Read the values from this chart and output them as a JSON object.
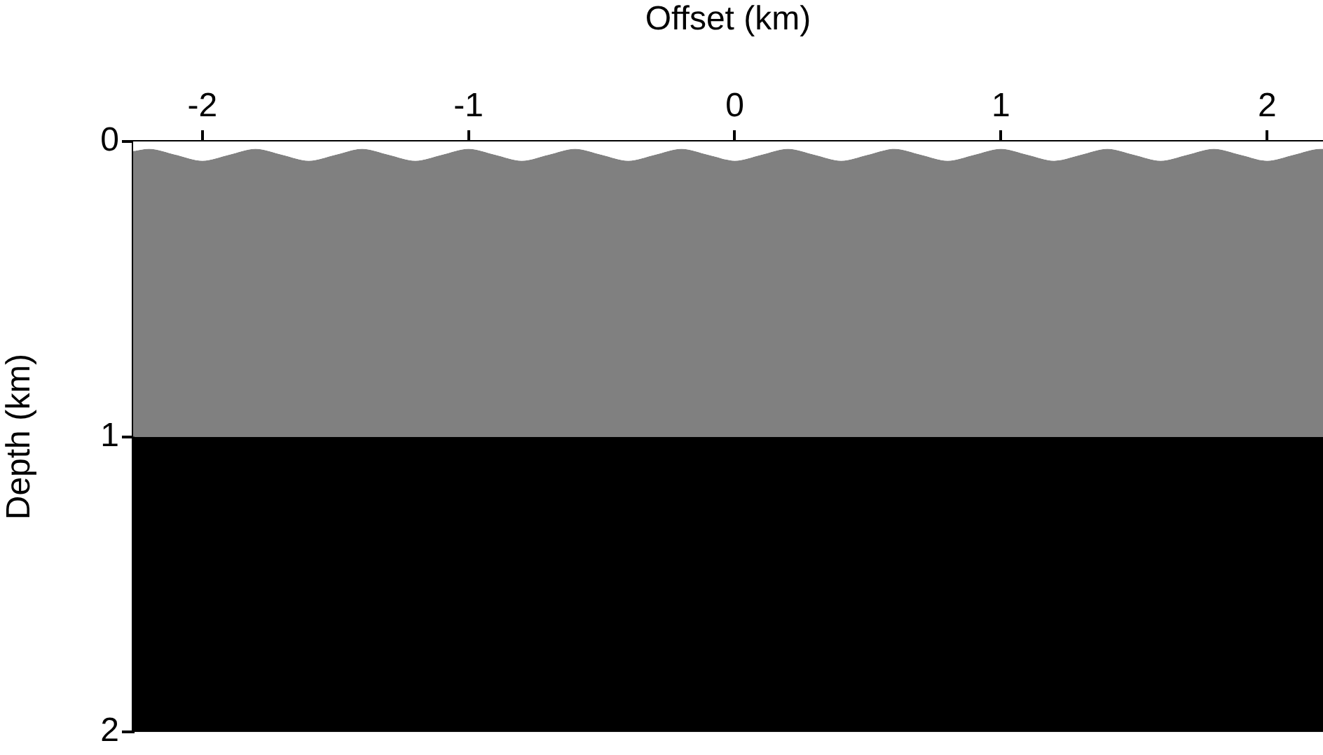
{
  "chart_data": {
    "type": "area",
    "stacked": true,
    "xlabel": "Offset (km)",
    "ylabel": "Depth (km)",
    "xlim": [
      -2.26,
      2.21
    ],
    "xticks": [
      -2,
      -1,
      0,
      1,
      2
    ],
    "ylim": [
      2,
      0
    ],
    "yticks": [
      0,
      1,
      2
    ],
    "grid": false,
    "legend": false,
    "marker": "none",
    "x": [
      -2.26,
      -2.2,
      -2.1,
      -2.0,
      -1.9,
      -1.8,
      -1.7,
      -1.6,
      -1.5,
      -1.4,
      -1.3,
      -1.2,
      -1.1,
      -1.0,
      -0.9,
      -0.8,
      -0.7,
      -0.6,
      -0.5,
      -0.4,
      -0.3,
      -0.2,
      -0.1,
      0.0,
      0.1,
      0.2,
      0.3,
      0.4,
      0.5,
      0.6,
      0.7,
      0.8,
      0.9,
      1.0,
      1.1,
      1.2,
      1.3,
      1.4,
      1.5,
      1.6,
      1.7,
      1.8,
      1.9,
      2.0,
      2.1,
      2.2,
      2.21
    ],
    "series": [
      {
        "color": "#ffffff",
        "values": [
          0.033,
          0.025,
          0.045,
          0.065,
          0.045,
          0.025,
          0.045,
          0.065,
          0.045,
          0.025,
          0.045,
          0.065,
          0.045,
          0.025,
          0.045,
          0.065,
          0.045,
          0.025,
          0.045,
          0.065,
          0.045,
          0.025,
          0.045,
          0.065,
          0.045,
          0.025,
          0.045,
          0.065,
          0.045,
          0.025,
          0.045,
          0.065,
          0.045,
          0.025,
          0.045,
          0.065,
          0.045,
          0.025,
          0.045,
          0.065,
          0.045,
          0.025,
          0.045,
          0.065,
          0.045,
          0.025,
          0.025
        ]
      },
      {
        "color": "#808080",
        "values": [
          0.967,
          0.975,
          0.955,
          0.935,
          0.955,
          0.975,
          0.955,
          0.935,
          0.955,
          0.975,
          0.955,
          0.935,
          0.955,
          0.975,
          0.955,
          0.935,
          0.955,
          0.975,
          0.955,
          0.935,
          0.955,
          0.975,
          0.955,
          0.935,
          0.955,
          0.975,
          0.955,
          0.935,
          0.955,
          0.975,
          0.955,
          0.935,
          0.955,
          0.975,
          0.955,
          0.935,
          0.955,
          0.975,
          0.955,
          0.935,
          0.955,
          0.975,
          0.955,
          0.935,
          0.955,
          0.975,
          0.975
        ]
      },
      {
        "color": "#000000",
        "values": [
          1,
          1,
          1,
          1,
          1,
          1,
          1,
          1,
          1,
          1,
          1,
          1,
          1,
          1,
          1,
          1,
          1,
          1,
          1,
          1,
          1,
          1,
          1,
          1,
          1,
          1,
          1,
          1,
          1,
          1,
          1,
          1,
          1,
          1,
          1,
          1,
          1,
          1,
          1,
          1,
          1,
          1,
          1,
          1,
          1,
          1,
          1
        ]
      }
    ]
  }
}
